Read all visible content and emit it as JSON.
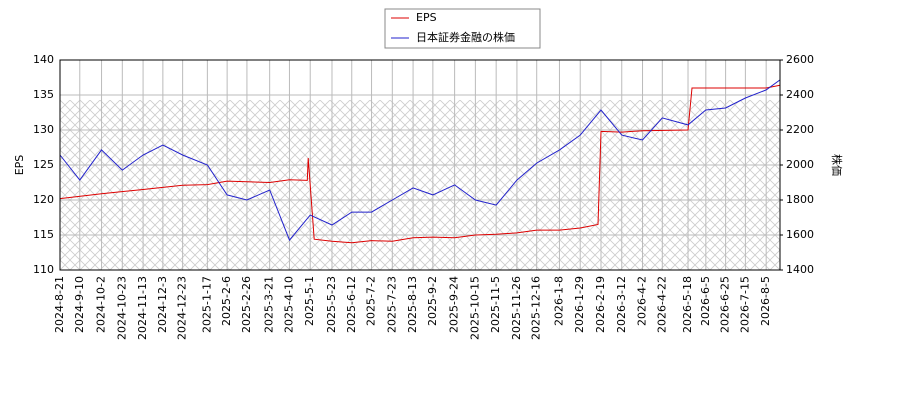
{
  "chart_data": {
    "type": "line",
    "y_label": "EPS",
    "y2_label": "株価",
    "xlim": [
      "2024-8-21",
      "2026-8-19"
    ],
    "xticks": [
      "2024-8-21",
      "2024-9-10",
      "2024-10-2",
      "2024-10-23",
      "2024-11-13",
      "2024-12-3",
      "2024-12-23",
      "2025-1-17",
      "2025-2-6",
      "2025-2-26",
      "2025-3-21",
      "2025-4-10",
      "2025-5-1",
      "2025-5-23",
      "2025-6-12",
      "2025-7-2",
      "2025-7-23",
      "2025-8-13",
      "2025-9-2",
      "2025-9-24",
      "2025-10-15",
      "2025-11-5",
      "2025-11-26",
      "2025-12-16",
      "2026-1-8",
      "2026-1-29",
      "2026-2-19",
      "2026-3-12",
      "2026-4-2",
      "2026-4-22",
      "2026-5-18",
      "2026-6-5",
      "2026-6-25",
      "2026-7-15",
      "2026-8-5"
    ],
    "ylim": [
      110,
      140
    ],
    "yticks": [
      110,
      115,
      120,
      125,
      130,
      135,
      140
    ],
    "y2lim": [
      1400,
      2600
    ],
    "y2ticks": [
      1400,
      1600,
      1800,
      2000,
      2200,
      2400,
      2600
    ],
    "grid": true,
    "legend": "top",
    "series": [
      {
        "name": "EPS",
        "color": "#dd0000",
        "x": [
          "2024-8-21",
          "2024-10-2",
          "2024-11-13",
          "2024-12-23",
          "2025-1-17",
          "2025-2-6",
          "2025-3-21",
          "2025-4-10",
          "2025-4-28",
          "2025-4-29",
          "2025-5-5",
          "2025-5-23",
          "2025-6-12",
          "2025-7-2",
          "2025-7-23",
          "2025-8-13",
          "2025-9-2",
          "2025-9-24",
          "2025-10-15",
          "2025-11-5",
          "2025-11-26",
          "2025-12-16",
          "2026-1-8",
          "2026-1-29",
          "2026-2-16",
          "2026-2-19",
          "2026-3-12",
          "2026-4-2",
          "2026-5-18",
          "2026-5-22",
          "2026-8-5",
          "2026-8-19"
        ],
        "values": [
          120.2,
          120.9,
          121.5,
          122.1,
          122.2,
          122.7,
          122.5,
          122.9,
          122.8,
          126.0,
          114.4,
          114.1,
          113.9,
          114.2,
          114.1,
          114.6,
          114.7,
          114.6,
          115.0,
          115.1,
          115.3,
          115.7,
          115.7,
          116.0,
          116.5,
          129.8,
          129.7,
          129.9,
          130.0,
          136.0,
          136.0,
          136.4
        ]
      },
      {
        "name": "日本証券金融の株価",
        "color": "#2222cc",
        "axis": "y2",
        "x": [
          "2024-8-21",
          "2024-9-10",
          "2024-10-2",
          "2024-10-23",
          "2024-11-13",
          "2024-12-3",
          "2024-12-23",
          "2025-1-17",
          "2025-2-6",
          "2025-2-26",
          "2025-3-21",
          "2025-4-10",
          "2025-5-1",
          "2025-5-23",
          "2025-6-12",
          "2025-7-2",
          "2025-7-23",
          "2025-8-13",
          "2025-9-2",
          "2025-9-24",
          "2025-10-15",
          "2025-11-5",
          "2025-11-26",
          "2025-12-16",
          "2026-1-8",
          "2026-1-29",
          "2026-2-19",
          "2026-3-12",
          "2026-4-2",
          "2026-4-22",
          "2026-5-18",
          "2026-6-5",
          "2026-6-25",
          "2026-7-15",
          "2026-8-5",
          "2026-8-19"
        ],
        "values": [
          2057,
          1914,
          2086,
          1971,
          2057,
          2114,
          2057,
          2000,
          1829,
          1800,
          1857,
          1571,
          1714,
          1657,
          1731,
          1731,
          1800,
          1869,
          1829,
          1886,
          1800,
          1771,
          1914,
          2011,
          2086,
          2171,
          2314,
          2171,
          2143,
          2269,
          2229,
          2314,
          2326,
          2383,
          2429,
          2486
        ]
      }
    ]
  }
}
